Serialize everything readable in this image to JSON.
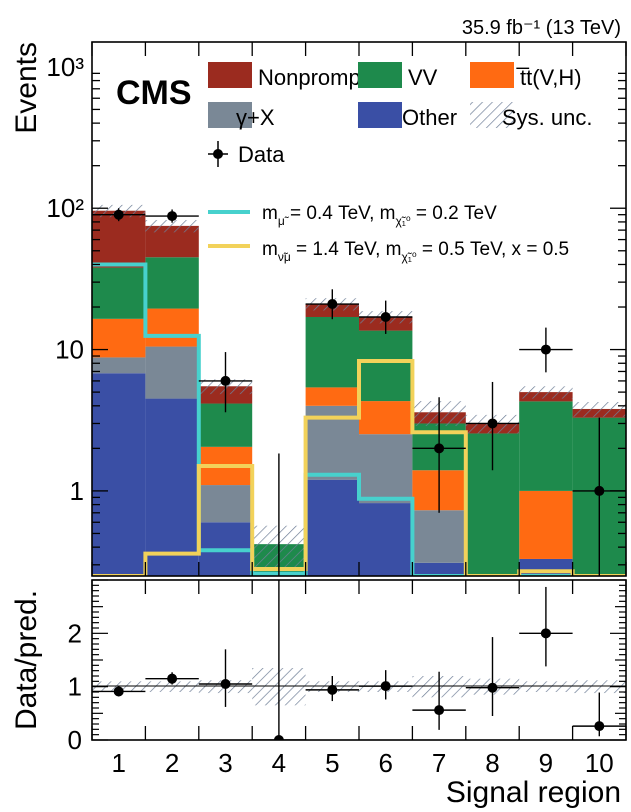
{
  "chart_data": {
    "type": "bar",
    "lumi_label": "35.9 fb⁻¹ (13 TeV)",
    "experiment_label": "CMS",
    "xlabel": "Signal region",
    "ylabel": "Events",
    "ratio_ylabel": "Data/pred.",
    "categories": [
      "1",
      "2",
      "3",
      "4",
      "5",
      "6",
      "7",
      "8",
      "9",
      "10"
    ],
    "y_scale": "log",
    "ylim": [
      0.25,
      1500
    ],
    "y_ticks": [
      1,
      10,
      100,
      1000
    ],
    "y_tick_labels": [
      "1",
      "10",
      "10²",
      "10³"
    ],
    "stack_series": [
      {
        "name": "Other",
        "color": "#3a4fa5",
        "values": [
          6.8,
          4.5,
          0.6,
          0.0,
          1.2,
          0.82,
          0.31,
          0.0,
          0.33,
          0.0
        ]
      },
      {
        "name": "γ+X",
        "color": "#7a8896",
        "values": [
          2.0,
          6.0,
          0.5,
          0.0,
          2.8,
          1.7,
          0.42,
          0.0,
          0.0,
          0.0
        ]
      },
      {
        "name": "t̅t(V,H)",
        "color": "#ff6a12",
        "values": [
          7.7,
          9.0,
          0.95,
          0.0,
          1.4,
          1.8,
          0.67,
          0.0,
          0.67,
          0.05
        ]
      },
      {
        "name": "VV",
        "color": "#1e8a4c",
        "values": [
          21.5,
          25.5,
          2.1,
          0.42,
          11.6,
          9.3,
          1.6,
          2.55,
          3.3,
          3.25
        ]
      },
      {
        "name": "Nonprompt",
        "color": "#9b2b1f",
        "values": [
          58.0,
          30.0,
          1.35,
          0.0,
          4.0,
          3.4,
          0.6,
          0.45,
          0.7,
          0.5
        ]
      }
    ],
    "sys_unc_label": "Sys. unc.",
    "sys_unc_rel": [
      0.1,
      0.1,
      0.12,
      0.35,
      0.1,
      0.1,
      0.2,
      0.15,
      0.1,
      0.12
    ],
    "signal_series": [
      {
        "name": "m_μ̃ = 0.4 TeV, m_χ̃₁⁰ = 0.2 TeV",
        "color": "#47d1cd",
        "values": [
          40,
          12.5,
          0.38,
          0.26,
          1.3,
          0.88,
          0.25,
          0.25,
          0.25,
          0.25
        ]
      },
      {
        "name": "m_ν̃μ = 1.4 TeV, m_χ̃₁⁰ = 0.5 TeV, x = 0.5",
        "color": "#f2d25a",
        "values": [
          0.25,
          0.36,
          1.5,
          0.28,
          3.3,
          8.3,
          2.6,
          0.25,
          0.27,
          0.25
        ]
      }
    ],
    "data": {
      "name": "Data",
      "values": [
        90,
        88,
        6,
        0,
        21,
        17,
        2,
        3,
        10,
        1
      ],
      "err_up": [
        10,
        10,
        3.6,
        1.84,
        5.7,
        5.2,
        2.6,
        2.9,
        4.3,
        2.3
      ],
      "err_down": [
        9,
        9,
        2.4,
        0,
        4.6,
        4.1,
        1.3,
        1.6,
        3.1,
        0.8
      ]
    },
    "ratio": {
      "ylim": [
        0,
        3
      ],
      "y_ticks": [
        0,
        1,
        2
      ],
      "values": [
        0.91,
        1.15,
        1.05,
        0.0,
        0.94,
        1.01,
        0.56,
        0.98,
        2.0,
        0.26
      ],
      "err_up": [
        0.1,
        0.12,
        0.65,
        3.5,
        0.26,
        0.3,
        0.72,
        0.95,
        0.87,
        0.63
      ],
      "err_down": [
        0.09,
        0.11,
        0.43,
        0.0,
        0.21,
        0.25,
        0.37,
        0.53,
        0.62,
        0.19
      ]
    }
  },
  "legend": {
    "nonprompt": "Nonprompt",
    "vv": "VV",
    "ttvh": "t̅t(V,H)",
    "gammax": "γ+X",
    "other": "Other",
    "sysunc": "Sys. unc.",
    "data": "Data"
  }
}
